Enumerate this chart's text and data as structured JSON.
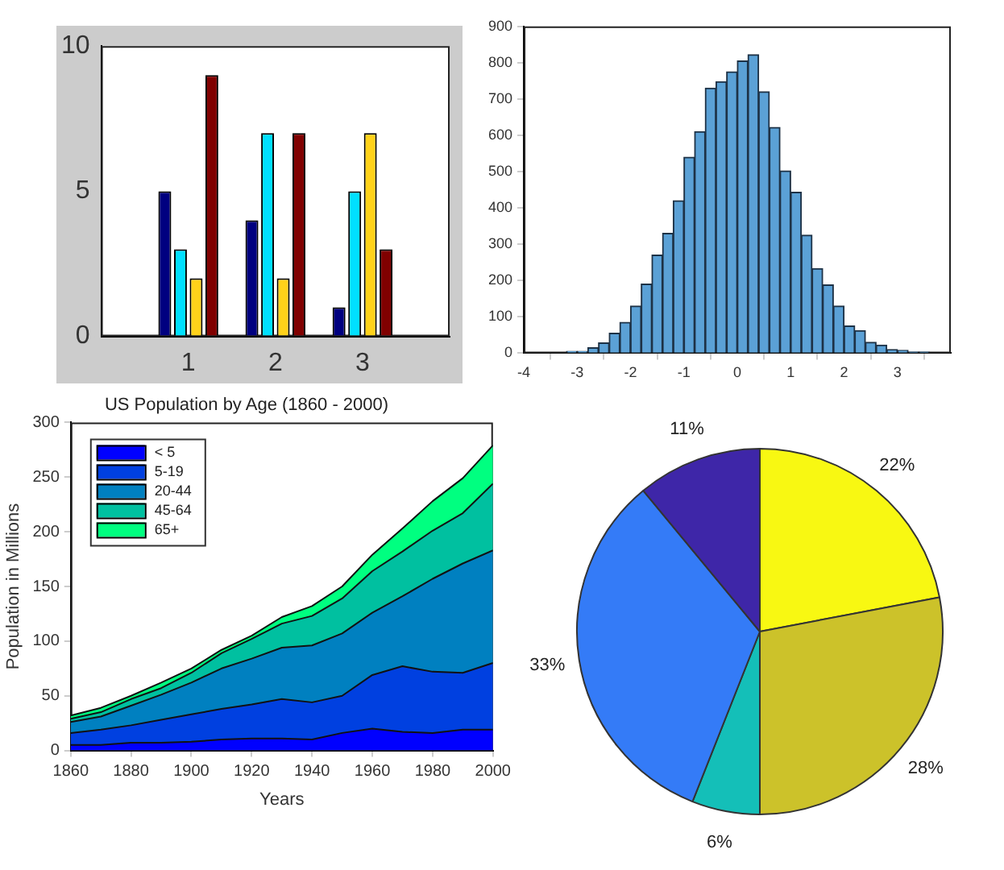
{
  "chart_data": [
    {
      "type": "bar",
      "x": [
        1,
        2,
        3
      ],
      "xlim": [
        0,
        4
      ],
      "xticks": [
        1,
        2,
        3
      ],
      "ylim": [
        0,
        10
      ],
      "yticks": [
        0,
        5,
        10
      ],
      "series": [
        {
          "color": "#000080",
          "values": [
            5,
            4,
            1
          ]
        },
        {
          "color": "#00e0ff",
          "values": [
            3,
            7,
            5
          ]
        },
        {
          "color": "#ffd21a",
          "values": [
            2,
            2,
            7
          ]
        },
        {
          "color": "#800000",
          "values": [
            9,
            7,
            3
          ]
        }
      ]
    },
    {
      "type": "histogram",
      "color": "#5ba1d6",
      "bins": [
        -3.2,
        -3.0,
        -2.8,
        -2.6,
        -2.4,
        -2.2,
        -2.0,
        -1.8,
        -1.6,
        -1.4,
        -1.2,
        -1.0,
        -0.8,
        -0.6,
        -0.4,
        -0.2,
        0.0,
        0.2,
        0.4,
        0.6,
        0.8,
        1.0,
        1.2,
        1.4,
        1.6,
        1.8,
        2.0,
        2.2,
        2.4,
        2.6,
        2.8,
        3.0,
        3.2,
        3.4,
        3.6
      ],
      "values": [
        5,
        5,
        15,
        28,
        55,
        85,
        130,
        190,
        270,
        330,
        420,
        540,
        610,
        730,
        748,
        775,
        805,
        822,
        720,
        622,
        502,
        443,
        325,
        233,
        188,
        130,
        75,
        62,
        30,
        22,
        10,
        8,
        3,
        3
      ],
      "xlim": [
        -4,
        4
      ],
      "xticks": [
        -4,
        -3,
        -2,
        -1,
        0,
        1,
        2,
        3
      ],
      "ylim": [
        0,
        900
      ],
      "yticks": [
        0,
        100,
        200,
        300,
        400,
        500,
        600,
        700,
        800,
        900
      ]
    },
    {
      "type": "area",
      "stacked": true,
      "title": "US Population by Age (1860 - 2000)",
      "xlabel": "Years",
      "ylabel": "Population in Millions",
      "legend": "top left",
      "x": [
        1860,
        1870,
        1880,
        1890,
        1900,
        1910,
        1920,
        1930,
        1940,
        1950,
        1960,
        1970,
        1980,
        1990,
        2000
      ],
      "xlim": [
        1860,
        2000
      ],
      "xticks": [
        1860,
        1880,
        1900,
        1920,
        1940,
        1960,
        1980,
        2000
      ],
      "ylim": [
        0,
        300
      ],
      "yticks": [
        0,
        50,
        100,
        150,
        200,
        250,
        300
      ],
      "series": [
        {
          "name": "< 5",
          "color": "#0000ff",
          "values": [
            5,
            5,
            7,
            7,
            8,
            10,
            11,
            11,
            10,
            16,
            20,
            17,
            16,
            19,
            19
          ]
        },
        {
          "name": "5-19",
          "color": "#0040e0",
          "values": [
            11,
            14,
            16,
            21,
            25,
            28,
            31,
            36,
            34,
            34,
            49,
            60,
            56,
            52,
            61
          ]
        },
        {
          "name": "20-44",
          "color": "#0080c0",
          "values": [
            10,
            12,
            18,
            23,
            29,
            37,
            42,
            47,
            52,
            57,
            57,
            64,
            85,
            100,
            103
          ]
        },
        {
          "name": "45-64",
          "color": "#00c0a0",
          "values": [
            3,
            4,
            6,
            6,
            9,
            14,
            18,
            22,
            27,
            32,
            38,
            41,
            44,
            46,
            61
          ]
        },
        {
          "name": "65+",
          "color": "#00ff80",
          "values": [
            3,
            4,
            3,
            5,
            4,
            3,
            3,
            6,
            9,
            11,
            15,
            21,
            27,
            32,
            35
          ]
        }
      ]
    },
    {
      "type": "pie",
      "categories": [
        null,
        null,
        null,
        null,
        null
      ],
      "values": [
        22,
        28,
        6,
        33,
        11
      ],
      "value_labels": [
        "22%",
        "28%",
        "6%",
        "33%",
        "11%"
      ],
      "colors": [
        "#f8f812",
        "#ccc22a",
        "#14bfb8",
        "#347bf7",
        "#3e26a8"
      ]
    }
  ]
}
